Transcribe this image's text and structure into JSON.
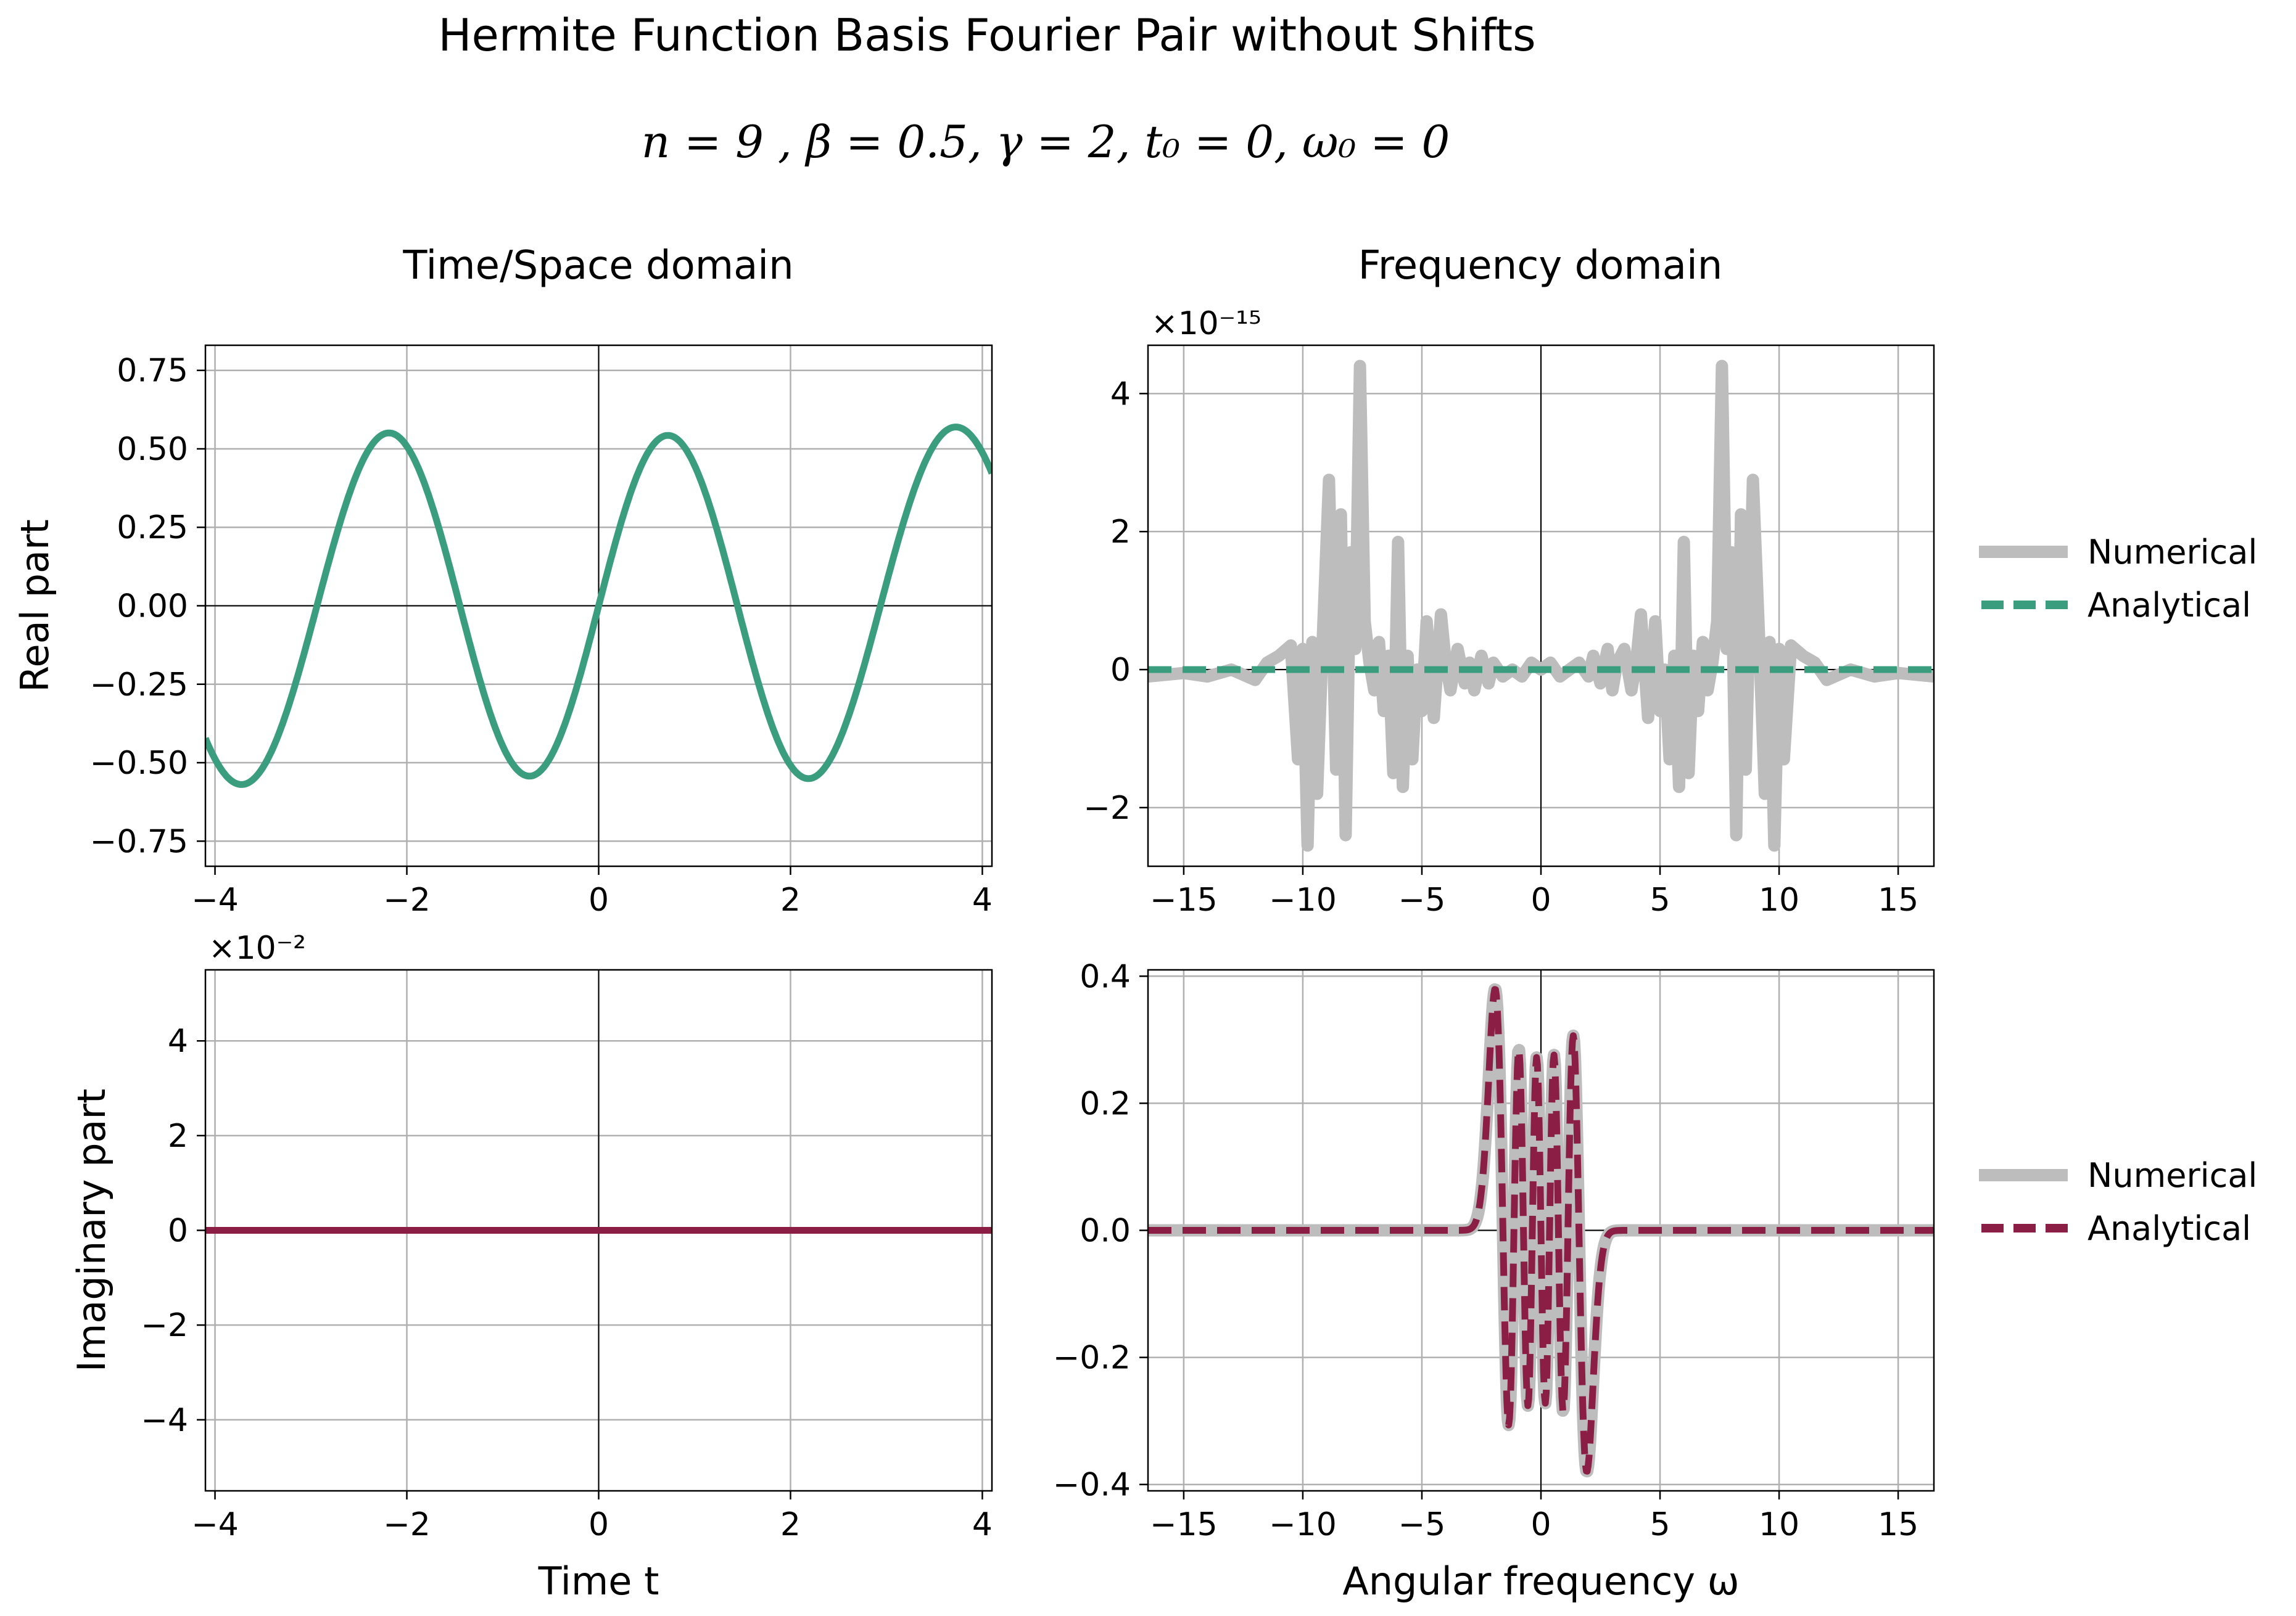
{
  "figure": {
    "title": "Hermite Function Basis Fourier Pair without Shifts",
    "params": "n = 9 , β = 0.5, γ = 2, t₀ = 0, ω₀ = 0",
    "column_titles": [
      "Time/Space domain",
      "Frequency domain"
    ],
    "colors": {
      "real": "#3a9e7e",
      "imag": "#8b1e45",
      "numerical": "#bdbdbd",
      "grid": "#b0b0b0",
      "zero_line": "#000000"
    }
  },
  "chart_data": [
    {
      "id": "time-real",
      "type": "line",
      "title": "",
      "xlabel": "",
      "ylabel": "Real part",
      "xlim": [
        -4.1,
        4.1
      ],
      "ylim": [
        -0.83,
        0.83
      ],
      "x_ticks": [
        -4,
        -2,
        0,
        2,
        4
      ],
      "x_tick_labels": [
        "−4",
        "−2",
        "0",
        "2",
        "4"
      ],
      "y_ticks": [
        -0.75,
        -0.5,
        -0.25,
        0,
        0.25,
        0.5,
        0.75
      ],
      "y_tick_labels": [
        "−0.75",
        "−0.50",
        "−0.25",
        "0.00",
        "0.25",
        "0.50",
        "0.75"
      ],
      "grid": true,
      "series": [
        {
          "function": "hermite",
          "n": 9,
          "scale": 2,
          "sign": 1,
          "peak": 0.758,
          "color": "#3a9e7e",
          "style": "solid"
        }
      ]
    },
    {
      "id": "freq-real",
      "type": "line",
      "title": "",
      "xlabel": "",
      "ylabel": "",
      "offset_text": "×10⁻¹⁵",
      "xlim": [
        -16.5,
        16.5
      ],
      "ylim": [
        -2.85,
        4.7
      ],
      "x_ticks": [
        -15,
        -10,
        -5,
        0,
        5,
        10,
        15
      ],
      "x_tick_labels": [
        "−15",
        "−10",
        "−5",
        "0",
        "5",
        "10",
        "15"
      ],
      "y_ticks": [
        -2,
        0,
        2,
        4
      ],
      "y_tick_labels": [
        "−2",
        "0",
        "2",
        "4"
      ],
      "grid": true,
      "legend": {
        "placement": "outside-right",
        "entries": [
          "Numerical",
          "Analytical"
        ]
      },
      "series": [
        {
          "name": "Numerical",
          "color": "#bdbdbd",
          "style": "solid",
          "x": [
            -16.5,
            -15.0,
            -14.0,
            -13.0,
            -12.0,
            -11.5,
            -11.0,
            -10.5,
            -10.2,
            -10.0,
            -9.8,
            -9.6,
            -9.4,
            -9.2,
            -8.9,
            -8.6,
            -8.4,
            -8.2,
            -8.0,
            -7.8,
            -7.6,
            -7.4,
            -7.2,
            -7.0,
            -6.8,
            -6.6,
            -6.4,
            -6.2,
            -6.0,
            -5.8,
            -5.6,
            -5.4,
            -5.2,
            -5.0,
            -4.8,
            -4.5,
            -4.2,
            -4.0,
            -3.8,
            -3.5,
            -3.2,
            -3.0,
            -2.8,
            -2.5,
            -2.2,
            -2.0,
            -1.6,
            -1.2,
            -0.8,
            -0.4,
            0.0,
            0.4,
            0.8,
            1.2,
            1.6,
            2.0,
            2.2,
            2.5,
            2.8,
            3.0,
            3.2,
            3.5,
            3.8,
            4.0,
            4.2,
            4.5,
            4.8,
            5.0,
            5.2,
            5.4,
            5.6,
            5.8,
            6.0,
            6.2,
            6.4,
            6.6,
            6.8,
            7.0,
            7.2,
            7.4,
            7.6,
            7.8,
            8.0,
            8.2,
            8.4,
            8.6,
            8.9,
            9.2,
            9.4,
            9.6,
            9.8,
            10.0,
            10.2,
            10.5,
            11.0,
            11.5,
            12.0,
            13.0,
            14.0,
            15.0,
            16.5
          ],
          "values": [
            -0.1,
            -0.05,
            -0.1,
            0.0,
            -0.15,
            0.1,
            0.2,
            0.35,
            -1.3,
            0.3,
            -2.55,
            0.4,
            -1.8,
            0.1,
            2.75,
            -1.45,
            2.25,
            -2.4,
            1.7,
            0.3,
            4.4,
            0.7,
            0.1,
            -0.3,
            0.4,
            -0.6,
            0.2,
            -1.5,
            1.85,
            -1.7,
            0.2,
            -1.3,
            0.0,
            -0.6,
            0.7,
            -0.7,
            0.8,
            0.1,
            -0.3,
            0.3,
            -0.2,
            0.1,
            -0.3,
            0.2,
            -0.2,
            0.1,
            -0.1,
            0.0,
            -0.1,
            0.1,
            0.0,
            0.1,
            -0.1,
            0.0,
            0.1,
            -0.1,
            0.2,
            -0.2,
            0.3,
            -0.3,
            0.1,
            0.3,
            -0.3,
            0.1,
            0.8,
            -0.7,
            0.7,
            -0.6,
            0.0,
            -1.3,
            0.2,
            -1.7,
            1.85,
            -1.5,
            0.2,
            -0.6,
            0.4,
            -0.3,
            0.1,
            0.7,
            4.4,
            0.3,
            1.7,
            -2.4,
            2.25,
            -1.45,
            2.75,
            0.1,
            -1.8,
            0.4,
            -2.55,
            0.3,
            -1.3,
            0.35,
            0.2,
            0.1,
            -0.15,
            0.0,
            -0.1,
            -0.05,
            -0.1
          ]
        },
        {
          "name": "Analytical",
          "constant": 0,
          "color": "#3a9e7e",
          "style": "dashed"
        }
      ]
    },
    {
      "id": "time-imag",
      "type": "line",
      "title": "",
      "xlabel": "Time t",
      "ylabel": "Imaginary part",
      "offset_text": "×10⁻²",
      "xlim": [
        -4.1,
        4.1
      ],
      "ylim": [
        -5.5,
        5.5
      ],
      "x_ticks": [
        -4,
        -2,
        0,
        2,
        4
      ],
      "x_tick_labels": [
        "−4",
        "−2",
        "0",
        "2",
        "4"
      ],
      "y_ticks": [
        -4,
        -2,
        0,
        2,
        4
      ],
      "y_tick_labels": [
        "−4",
        "−2",
        "0",
        "2",
        "4"
      ],
      "grid": true,
      "series": [
        {
          "constant": 0,
          "color": "#8b1e45",
          "style": "solid"
        }
      ]
    },
    {
      "id": "freq-imag",
      "type": "line",
      "title": "",
      "xlabel": "Angular frequency ω",
      "ylabel": "",
      "xlim": [
        -16.5,
        16.5
      ],
      "ylim": [
        -0.41,
        0.41
      ],
      "x_ticks": [
        -15,
        -10,
        -5,
        0,
        5,
        10,
        15
      ],
      "x_tick_labels": [
        "−15",
        "−10",
        "−5",
        "0",
        "5",
        "10",
        "15"
      ],
      "y_ticks": [
        -0.4,
        -0.2,
        0,
        0.2,
        0.4
      ],
      "y_tick_labels": [
        "−0.4",
        "−0.2",
        "0.0",
        "0.2",
        "0.4"
      ],
      "grid": true,
      "legend": {
        "placement": "outside-right",
        "entries": [
          "Numerical",
          "Analytical"
        ]
      },
      "series": [
        {
          "name": "Numerical",
          "function": "hermite",
          "n": 9,
          "scale": 0.5,
          "sign": -1,
          "peak": 0.38,
          "color": "#bdbdbd",
          "style": "solid"
        },
        {
          "name": "Analytical",
          "function": "hermite",
          "n": 9,
          "scale": 0.5,
          "sign": -1,
          "peak": 0.38,
          "color": "#8b1e45",
          "style": "dashed"
        }
      ]
    }
  ]
}
